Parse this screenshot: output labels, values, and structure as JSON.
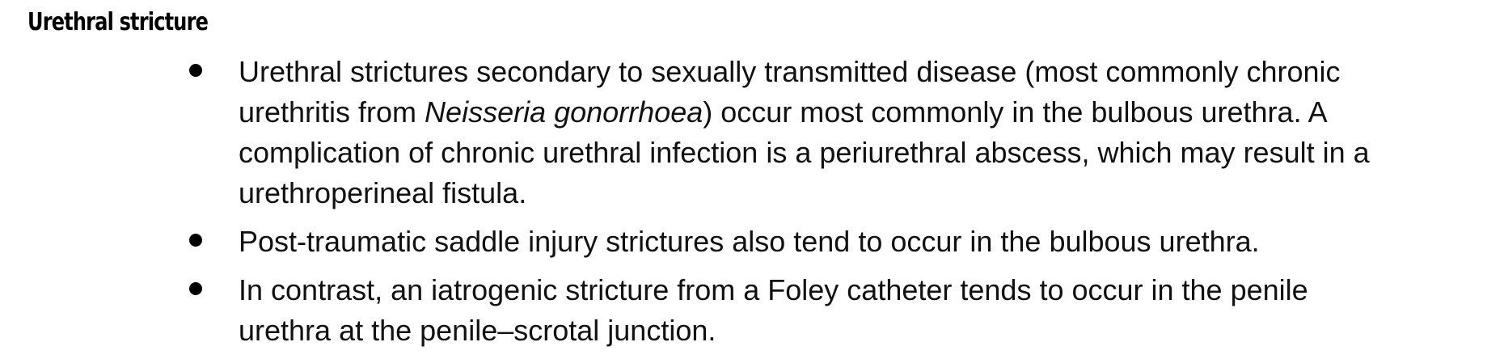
{
  "heading": "Urethral stricture",
  "bullets": [
    {
      "before": "Urethral strictures secondary to sexually transmitted disease (most commonly chronic urethritis from ",
      "italic": "Neisseria gonorrhoea",
      "after": ") occur most commonly in the bulbous urethra. A complication of chronic urethral infection is a periurethral abscess, which may result in a urethroperineal fistula."
    },
    {
      "text": "Post-traumatic saddle injury strictures also tend to occur in the bulbous urethra."
    },
    {
      "text": "In contrast, an iatrogenic stricture from a Foley catheter tends to occur in the penile urethra at the penile–scrotal junction."
    }
  ]
}
